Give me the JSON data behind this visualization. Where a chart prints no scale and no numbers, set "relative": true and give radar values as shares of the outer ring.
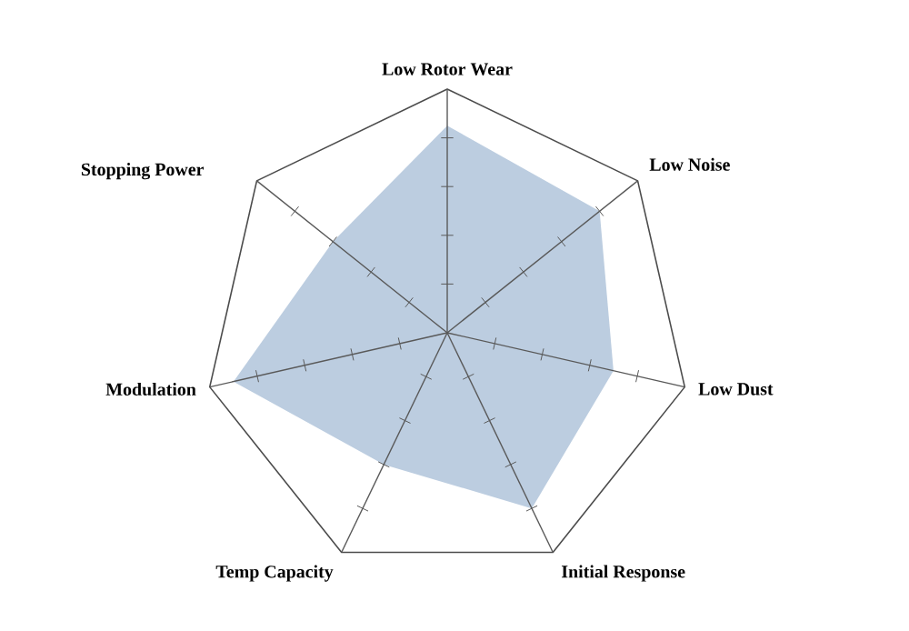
{
  "chart_data": {
    "type": "radar",
    "relative": true,
    "categories": [
      "Low Rotor Wear",
      "Low Noise",
      "Low Dust",
      "Initial Response",
      "Temp Capacity",
      "Modulation",
      "Stopping Power"
    ],
    "series": [
      {
        "color": "#bccde0",
        "values": [
          0.85,
          0.8,
          0.7,
          0.8,
          0.6,
          0.9,
          0.6
        ]
      }
    ]
  }
}
